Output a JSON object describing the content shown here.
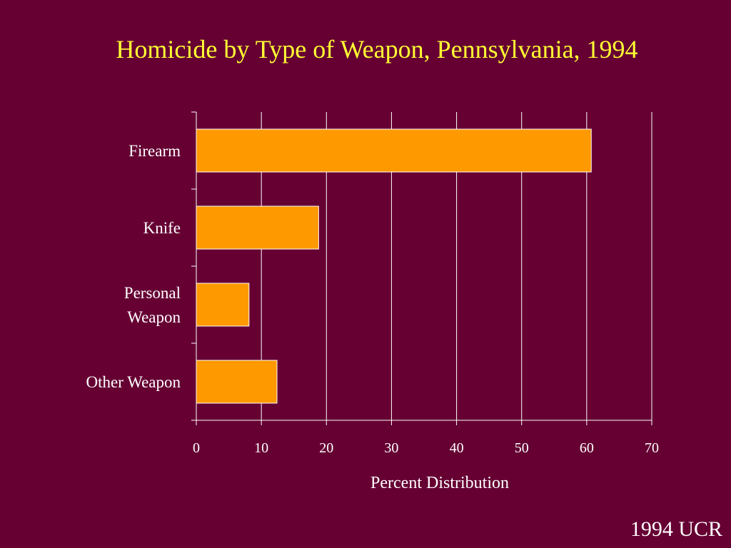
{
  "slide": {
    "title": "Homicide by Type of Weapon, Pennsylvania, 1994",
    "source": "1994 UCR"
  },
  "colors": {
    "background": "#660033",
    "title": "#ffff33",
    "bar": "#ff9900",
    "text": "#ffffff"
  },
  "chart_data": {
    "type": "bar",
    "orientation": "horizontal",
    "title": "Homicide by Type of Weapon, Pennsylvania, 1994",
    "categories": [
      "Firearm",
      "Knife",
      "Personal Weapon",
      "Other Weapon"
    ],
    "category_lines": [
      [
        "Firearm"
      ],
      [
        "Knife"
      ],
      [
        "Personal",
        "Weapon"
      ],
      [
        "Other Weapon"
      ]
    ],
    "values": [
      60.7,
      18.8,
      8.1,
      12.4
    ],
    "xlabel": "Percent Distribution",
    "ylabel": "",
    "xlim": [
      0,
      70
    ],
    "xticks": [
      0,
      10,
      20,
      30,
      40,
      50,
      60,
      70
    ],
    "grid": true,
    "legend": "none"
  }
}
